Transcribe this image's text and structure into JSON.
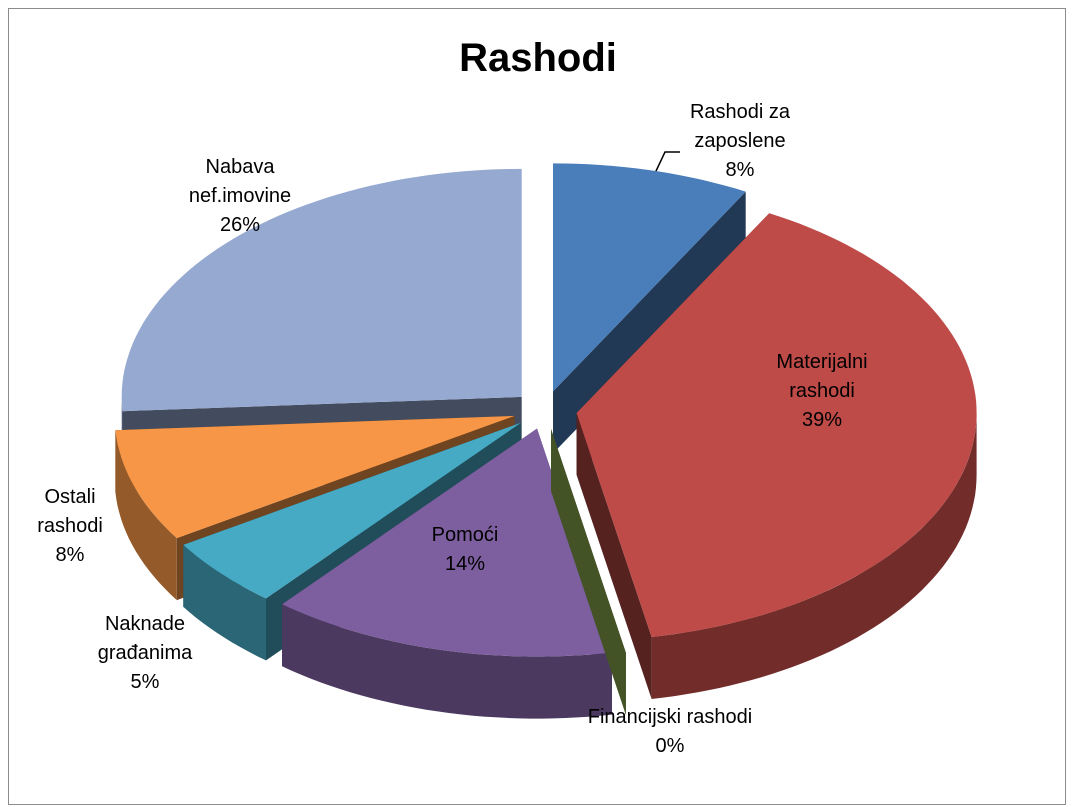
{
  "chart_data": {
    "type": "pie3d",
    "title": "Rashodi",
    "categories": [
      "Rashodi za zaposlene",
      "Materijalni rashodi",
      "Financijski rashodi",
      "Pomoći",
      "Naknade građanima",
      "Ostali rashodi",
      "Nabava nef.imovine"
    ],
    "values": [
      8,
      39,
      0,
      14,
      5,
      8,
      26
    ],
    "value_labels": [
      "8%",
      "39%",
      "0%",
      "14%",
      "5%",
      "8%",
      "26%"
    ],
    "colors": [
      "#4a7ebb",
      "#be4b48",
      "#98b954",
      "#7d5fa0",
      "#46aac5",
      "#f79646",
      "#95a9d1"
    ]
  }
}
